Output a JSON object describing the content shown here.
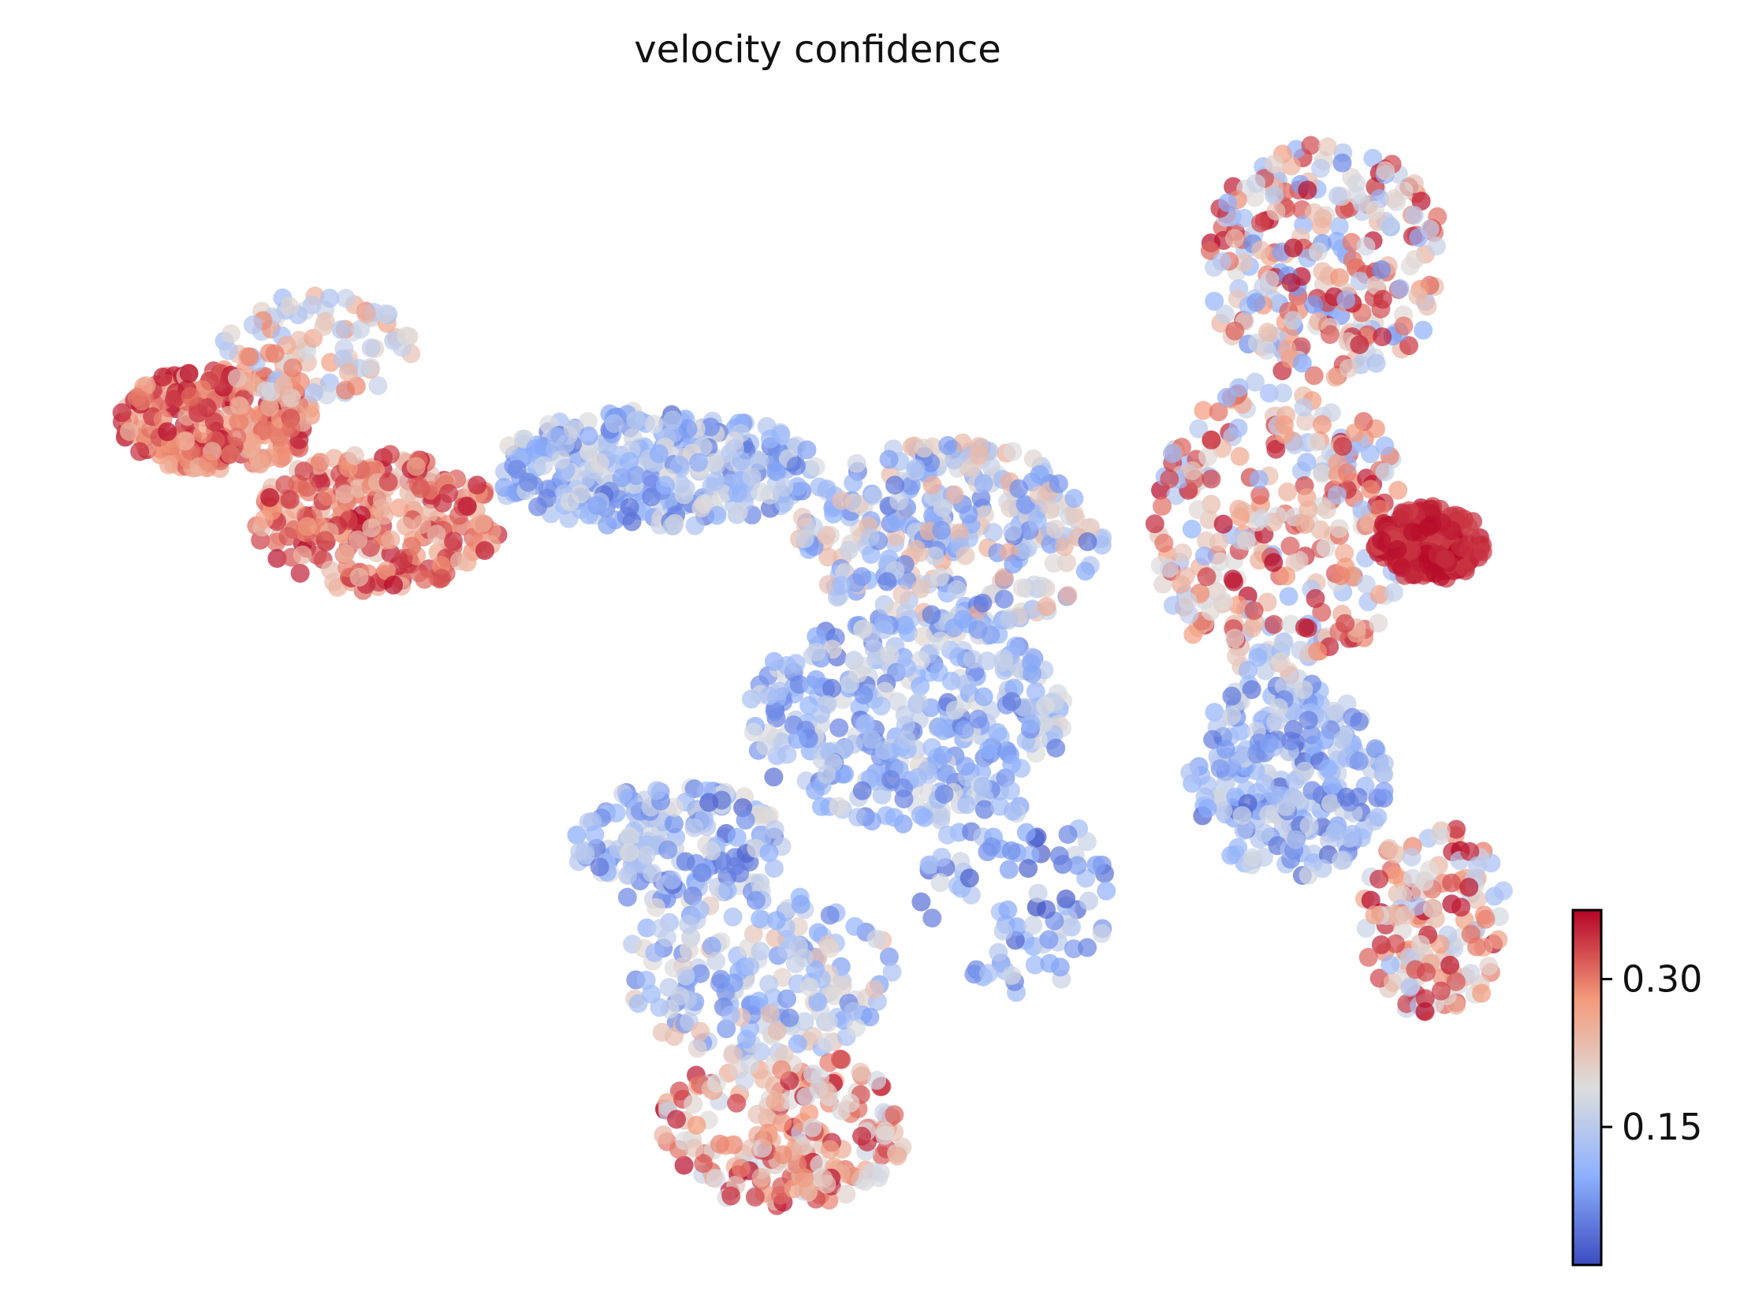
{
  "chart_data": {
    "type": "scatter",
    "title": "velocity confidence",
    "xlabel": "",
    "ylabel": "",
    "grid": false,
    "frame": false,
    "colormap": "coolwarm",
    "colormap_stops": [
      "#3b4cc0",
      "#8db0fe",
      "#dddddd",
      "#f49a7b",
      "#b40426"
    ],
    "point_alpha": 0.7,
    "colorbar": {
      "placement": "bottom-right",
      "range": [
        0.01,
        0.37
      ],
      "ticks": [
        {
          "value": 0.3,
          "label": "0.30"
        },
        {
          "value": 0.15,
          "label": "0.15"
        }
      ]
    },
    "clusters": [
      {
        "region": "left-arm-tip",
        "x": [
          0.8,
          2.4
        ],
        "y": [
          6.9,
          7.9
        ],
        "value_range": [
          0.24,
          0.37
        ],
        "n_points": 240
      },
      {
        "region": "left-arm-lower",
        "x": [
          1.9,
          3.9
        ],
        "y": [
          5.8,
          7.1
        ],
        "value_range": [
          0.22,
          0.37
        ],
        "n_points": 260
      },
      {
        "region": "left-arm-upper",
        "x": [
          1.6,
          3.2
        ],
        "y": [
          7.6,
          8.6
        ],
        "value_range": [
          0.12,
          0.3
        ],
        "n_points": 90
      },
      {
        "region": "upper-bridge",
        "x": [
          3.8,
          6.5
        ],
        "y": [
          6.4,
          7.5
        ],
        "value_range": [
          0.04,
          0.2
        ],
        "n_points": 320
      },
      {
        "region": "central-bend",
        "x": [
          6.3,
          8.8
        ],
        "y": [
          5.4,
          7.2
        ],
        "value_range": [
          0.04,
          0.26
        ],
        "n_points": 320
      },
      {
        "region": "central-body",
        "x": [
          5.9,
          8.5
        ],
        "y": [
          3.6,
          5.6
        ],
        "value_range": [
          0.04,
          0.2
        ],
        "n_points": 360
      },
      {
        "region": "lower-left-lobe",
        "x": [
          4.5,
          6.2
        ],
        "y": [
          2.8,
          4.0
        ],
        "value_range": [
          0.03,
          0.2
        ],
        "n_points": 170
      },
      {
        "region": "lower-stem",
        "x": [
          4.9,
          7.1
        ],
        "y": [
          1.4,
          3.0
        ],
        "value_range": [
          0.06,
          0.24
        ],
        "n_points": 190
      },
      {
        "region": "lower-tip",
        "x": [
          5.2,
          7.2
        ],
        "y": [
          0.0,
          1.5
        ],
        "value_range": [
          0.16,
          0.37
        ],
        "n_points": 210
      },
      {
        "region": "small-islands",
        "x": [
          7.3,
          8.9
        ],
        "y": [
          2.0,
          3.8
        ],
        "value_range": [
          0.02,
          0.18
        ],
        "n_points": 90
      },
      {
        "region": "right-upper-arm",
        "x": [
          9.6,
          11.6
        ],
        "y": [
          7.8,
          10.0
        ],
        "value_range": [
          0.06,
          0.37
        ],
        "n_points": 260
      },
      {
        "region": "right-middle",
        "x": [
          9.2,
          11.3
        ],
        "y": [
          5.0,
          7.8
        ],
        "value_range": [
          0.1,
          0.37
        ],
        "n_points": 300
      },
      {
        "region": "right-dense-cluster",
        "x": [
          11.0,
          11.9
        ],
        "y": [
          5.9,
          6.6
        ],
        "value_range": [
          0.33,
          0.37
        ],
        "n_points": 190
      },
      {
        "region": "right-lower-body",
        "x": [
          9.5,
          11.1
        ],
        "y": [
          3.1,
          5.0
        ],
        "value_range": [
          0.03,
          0.18
        ],
        "n_points": 260
      },
      {
        "region": "right-lower-tail",
        "x": [
          10.9,
          12.1
        ],
        "y": [
          1.8,
          3.6
        ],
        "value_range": [
          0.12,
          0.37
        ],
        "n_points": 150
      }
    ]
  }
}
